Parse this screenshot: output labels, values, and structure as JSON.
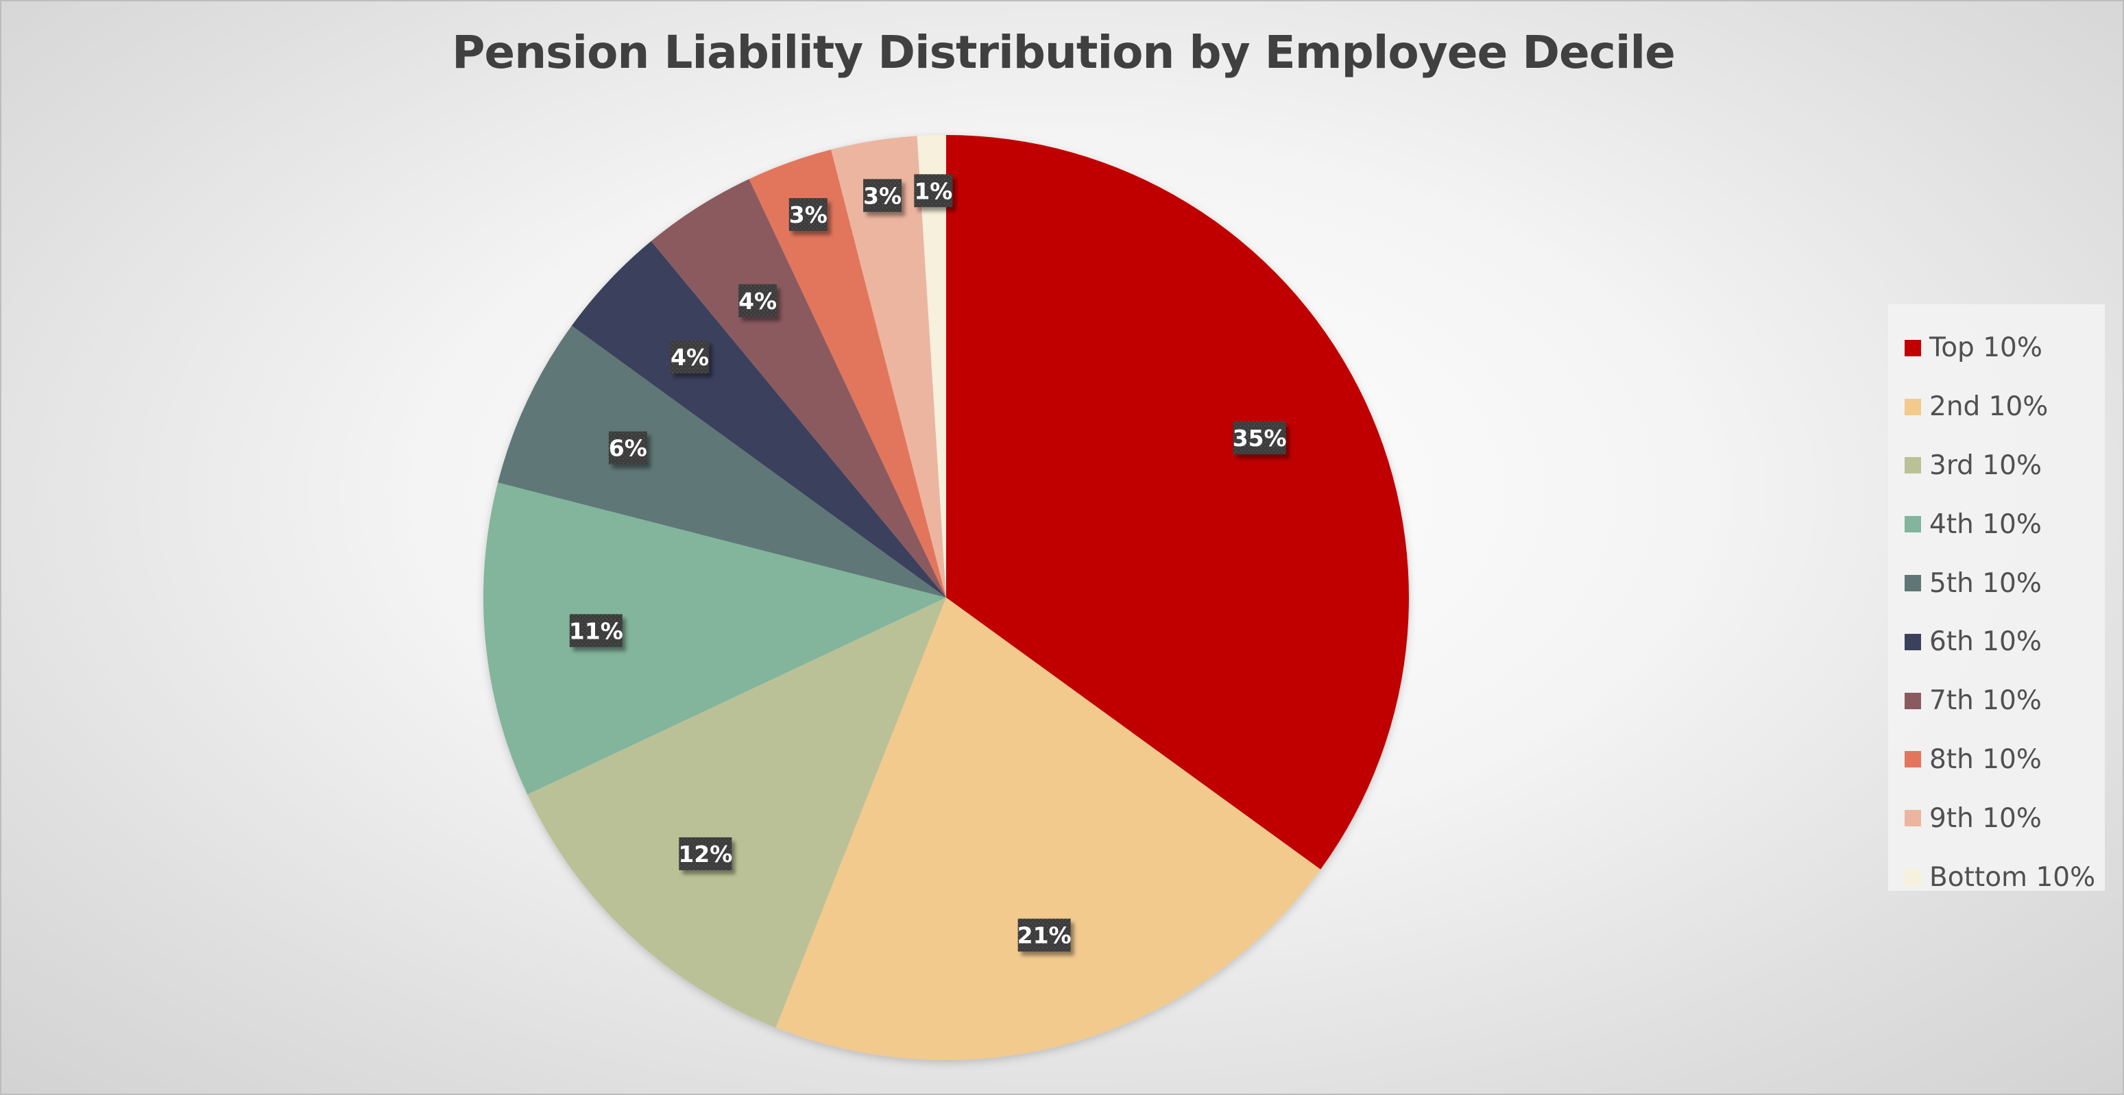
{
  "chart_data": {
    "type": "pie",
    "title": "Pension Liability Distribution by Employee Decile",
    "legend_position": "right",
    "categories": [
      "Top 10%",
      "2nd 10%",
      "3rd 10%",
      "4th 10%",
      "5th 10%",
      "6th 10%",
      "7th 10%",
      "8th 10%",
      "9th 10%",
      "Bottom 10%"
    ],
    "values": [
      35,
      21,
      12,
      11,
      6,
      4,
      4,
      3,
      3,
      1
    ],
    "data_labels": [
      "35%",
      "21%",
      "12%",
      "11%",
      "6%",
      "4%",
      "4%",
      "3%",
      "3%",
      "1%"
    ],
    "colors": [
      "#C00000",
      "#F2CA8E",
      "#BBC196",
      "#82B59B",
      "#5E7776",
      "#3B405D",
      "#8B5A5E",
      "#E2765D",
      "#ECB5A0",
      "#F6F0DC"
    ],
    "label_box_color": "#3C3C3C"
  }
}
